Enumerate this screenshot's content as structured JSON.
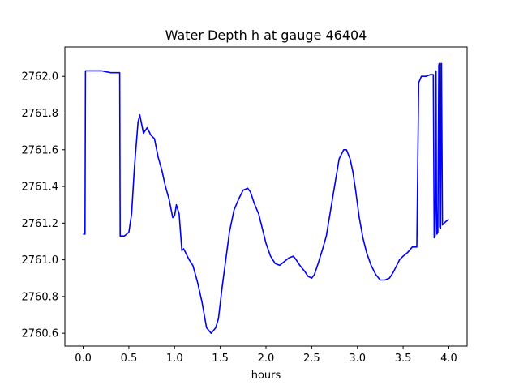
{
  "chart_data": {
    "type": "line",
    "title": "Water Depth h at gauge 46404",
    "xlabel": "hours",
    "ylabel": "",
    "xlim": [
      -0.2,
      4.2
    ],
    "ylim": [
      2760.53,
      2762.16
    ],
    "x_ticks": [
      0.0,
      0.5,
      1.0,
      1.5,
      2.0,
      2.5,
      3.0,
      3.5,
      4.0
    ],
    "x_tick_labels": [
      "0.0",
      "0.5",
      "1.0",
      "1.5",
      "2.0",
      "2.5",
      "3.0",
      "3.5",
      "4.0"
    ],
    "y_ticks": [
      2760.6,
      2760.8,
      2761.0,
      2761.2,
      2761.4,
      2761.6,
      2761.8,
      2762.0
    ],
    "y_tick_labels": [
      "2760.6",
      "2760.8",
      "2761.0",
      "2761.2",
      "2761.4",
      "2761.6",
      "2761.8",
      "2762.0"
    ],
    "grid": false,
    "colors": {
      "series": "#0000ff"
    },
    "series": [
      {
        "x": [
          0.0,
          0.02,
          0.025,
          0.1,
          0.2,
          0.3,
          0.4,
          0.405,
          0.45,
          0.5,
          0.53,
          0.56,
          0.6,
          0.62,
          0.66,
          0.7,
          0.74,
          0.78,
          0.82,
          0.86,
          0.9,
          0.94,
          0.98,
          1.0,
          1.02,
          1.05,
          1.08,
          1.1,
          1.13,
          1.16,
          1.2,
          1.25,
          1.3,
          1.35,
          1.4,
          1.45,
          1.48,
          1.52,
          1.56,
          1.6,
          1.65,
          1.7,
          1.75,
          1.8,
          1.83,
          1.87,
          1.92,
          1.96,
          2.0,
          2.05,
          2.1,
          2.15,
          2.2,
          2.25,
          2.3,
          2.33,
          2.37,
          2.42,
          2.46,
          2.5,
          2.53,
          2.57,
          2.62,
          2.66,
          2.7,
          2.75,
          2.8,
          2.85,
          2.88,
          2.92,
          2.95,
          2.98,
          3.02,
          3.06,
          3.1,
          3.15,
          3.2,
          3.25,
          3.3,
          3.35,
          3.39,
          3.42,
          3.46,
          3.5,
          3.55,
          3.6,
          3.65,
          3.67,
          3.675,
          3.7,
          3.75,
          3.8,
          3.83,
          3.84,
          3.85,
          3.86,
          3.865,
          3.87,
          3.88,
          3.89,
          3.895,
          3.9,
          3.91,
          3.915,
          3.92,
          3.93,
          3.95,
          3.97,
          4.0
        ],
        "values": [
          2761.14,
          2761.14,
          2762.03,
          2762.03,
          2762.03,
          2762.02,
          2762.02,
          2761.13,
          2761.13,
          2761.15,
          2761.25,
          2761.5,
          2761.75,
          2761.79,
          2761.69,
          2761.72,
          2761.68,
          2761.66,
          2761.56,
          2761.49,
          2761.4,
          2761.33,
          2761.23,
          2761.24,
          2761.3,
          2761.25,
          2761.05,
          2761.06,
          2761.03,
          2761.0,
          2760.97,
          2760.88,
          2760.77,
          2760.63,
          2760.6,
          2760.63,
          2760.68,
          2760.85,
          2761.0,
          2761.15,
          2761.27,
          2761.33,
          2761.38,
          2761.39,
          2761.37,
          2761.31,
          2761.25,
          2761.17,
          2761.09,
          2761.02,
          2760.98,
          2760.97,
          2760.99,
          2761.01,
          2761.02,
          2761.0,
          2760.97,
          2760.94,
          2760.91,
          2760.9,
          2760.92,
          2760.98,
          2761.06,
          2761.13,
          2761.25,
          2761.4,
          2761.55,
          2761.6,
          2761.6,
          2761.55,
          2761.48,
          2761.38,
          2761.23,
          2761.12,
          2761.04,
          2760.97,
          2760.92,
          2760.89,
          2760.89,
          2760.9,
          2760.93,
          2760.96,
          2761.0,
          2761.02,
          2761.04,
          2761.07,
          2761.07,
          2761.97,
          2761.97,
          2762.0,
          2762.0,
          2762.01,
          2762.01,
          2761.12,
          2761.13,
          2762.03,
          2761.3,
          2761.14,
          2761.15,
          2762.06,
          2762.07,
          2761.18,
          2761.17,
          2762.07,
          2762.07,
          2761.19,
          2761.2,
          2761.21,
          2761.22
        ]
      }
    ]
  }
}
